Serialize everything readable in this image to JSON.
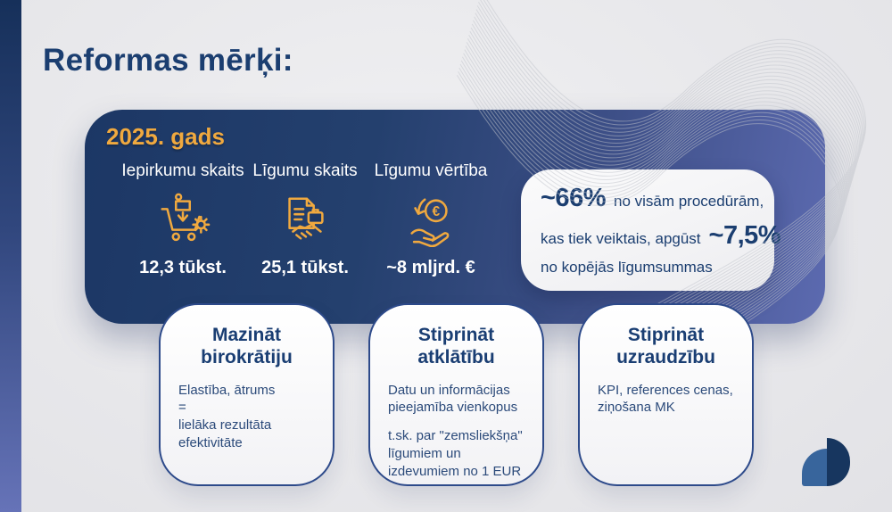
{
  "page": {
    "title": "Reformas mērķi:"
  },
  "panel": {
    "year": "2025. gads",
    "stats": [
      {
        "label": "Iepirkumu skaits",
        "value": "12,3 tūkst.",
        "icon": "cart-box-gear-icon"
      },
      {
        "label": "Līgumu skaits",
        "value": "25,1 tūkst.",
        "icon": "document-handshake-icon"
      },
      {
        "label": "Līgumu vērtība",
        "value": "~8 mljrd. €",
        "icon": "hand-euro-coin-icon",
        "icon_glyph": "€"
      }
    ],
    "highlight": {
      "stat1": "~66%",
      "after_stat1": "no visām procedūrām,",
      "line2_text": "kas tiek veiktais, apgūst",
      "stat2": "~7,5%",
      "line3_text": "no kopējās līgumsummas"
    }
  },
  "cards": [
    {
      "title": "Mazināt birokrātiju",
      "line1": "Elastība, ātrums",
      "line2": "=",
      "line3": "lielāka rezultāta efektivitāte"
    },
    {
      "title": "Stiprināt atklātību",
      "para1": "Datu un informācijas pieejamība vienkopus",
      "para2": "t.sk. par \"zemsliekšņa\" līgumiem un izdevumiem no 1 EUR"
    },
    {
      "title": "Stiprināt uzraudzību",
      "para1": "KPI, references cenas, ziņošana MK"
    }
  ],
  "colors": {
    "navy_text": "#1b3e70",
    "gold": "#f0a93f",
    "panel_gradient_start": "#1c3765",
    "panel_gradient_end": "#5c6ab0",
    "card_border": "#2d4a8a",
    "background": "#e9e9eb",
    "logo_light": "#38659c",
    "logo_dark": "#17365f"
  }
}
